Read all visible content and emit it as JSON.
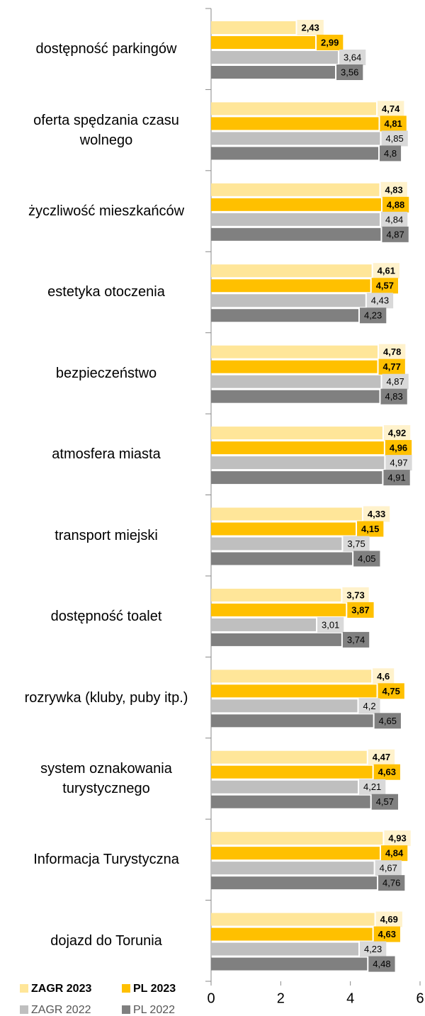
{
  "chart_data": {
    "type": "bar",
    "orientation": "horizontal",
    "categories": [
      "dostępność parkingów",
      "oferta spędzania czasu wolnego",
      "życzliwość mieszkańców",
      "estetyka otoczenia",
      "bezpieczeństwo",
      "atmosfera miasta",
      "transport miejski",
      "dostępność toalet",
      "rozrywka (kluby, puby itp.)",
      "system oznakowania turystycznego",
      "Informacja Turystyczna",
      "dojazd do Torunia"
    ],
    "series": [
      {
        "name": "ZAGR 2023",
        "color": "#FFE699",
        "label_color": "#FFF2CC",
        "bold": true,
        "values": [
          2.43,
          4.74,
          4.83,
          4.61,
          4.78,
          4.92,
          4.33,
          3.73,
          4.6,
          4.47,
          4.93,
          4.69
        ],
        "value_labels": [
          "2,43",
          "4,74",
          "4,83",
          "4,61",
          "4,78",
          "4,92",
          "4,33",
          "3,73",
          "4,6",
          "4,47",
          "4,93",
          "4,69"
        ]
      },
      {
        "name": "PL 2023",
        "color": "#FFC000",
        "label_color": "#FFC000",
        "bold": true,
        "values": [
          2.99,
          4.81,
          4.88,
          4.57,
          4.77,
          4.96,
          4.15,
          3.87,
          4.75,
          4.63,
          4.84,
          4.63
        ],
        "value_labels": [
          "2,99",
          "4,81",
          "4,88",
          "4,57",
          "4,77",
          "4,96",
          "4,15",
          "3,87",
          "4,75",
          "4,63",
          "4,84",
          "4,63"
        ]
      },
      {
        "name": "ZAGR 2022",
        "color": "#BFBFBF",
        "label_color": "#D9D9D9",
        "bold": false,
        "values": [
          3.64,
          4.85,
          4.84,
          4.43,
          4.87,
          4.97,
          3.75,
          3.01,
          4.2,
          4.21,
          4.67,
          4.23
        ],
        "value_labels": [
          "3,64",
          "4,85",
          "4,84",
          "4,43",
          "4,87",
          "4,97",
          "3,75",
          "3,01",
          "4,2",
          "4,21",
          "4,67",
          "4,23"
        ]
      },
      {
        "name": "PL 2022",
        "color": "#808080",
        "label_color": "#808080",
        "bold": false,
        "values": [
          3.56,
          4.8,
          4.87,
          4.23,
          4.83,
          4.91,
          4.05,
          3.74,
          4.65,
          4.57,
          4.76,
          4.48
        ],
        "value_labels": [
          "3,56",
          "4,8",
          "4,87",
          "4,23",
          "4,83",
          "4,91",
          "4,05",
          "3,74",
          "4,65",
          "4,57",
          "4,76",
          "4,48"
        ]
      }
    ],
    "xlim": [
      0,
      6
    ],
    "xticks": [
      0,
      2,
      4,
      6
    ],
    "legend": "bottom-left"
  }
}
